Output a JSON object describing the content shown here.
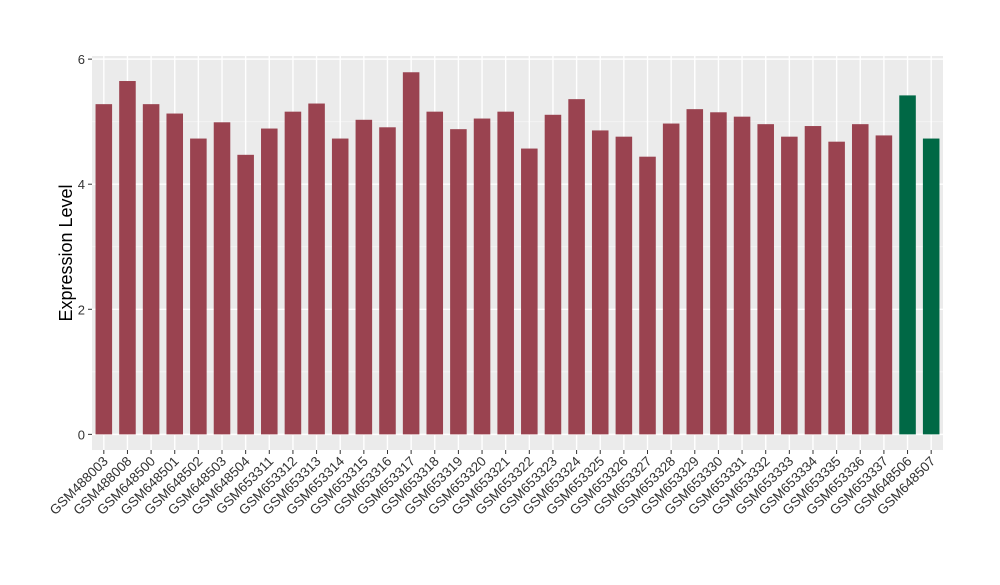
{
  "chart_data": {
    "type": "bar",
    "title": "",
    "xlabel": "",
    "ylabel": "Expression Level",
    "ylim": [
      -0.25,
      6.05
    ],
    "yticks": [
      0,
      2,
      4,
      6
    ],
    "grid": true,
    "background": "#EBEBEB",
    "categories": [
      "GSM488003",
      "GSM488008",
      "GSM648500",
      "GSM648501",
      "GSM648502",
      "GSM648503",
      "GSM648504",
      "GSM653311",
      "GSM653312",
      "GSM653313",
      "GSM653314",
      "GSM653315",
      "GSM653316",
      "GSM653317",
      "GSM653318",
      "GSM653319",
      "GSM653320",
      "GSM653321",
      "GSM653322",
      "GSM653323",
      "GSM653324",
      "GSM653325",
      "GSM653326",
      "GSM653327",
      "GSM653328",
      "GSM653329",
      "GSM653330",
      "GSM653331",
      "GSM653332",
      "GSM653333",
      "GSM653334",
      "GSM653335",
      "GSM653336",
      "GSM653337",
      "GSM648506",
      "GSM648507"
    ],
    "values": [
      5.28,
      5.65,
      5.28,
      5.13,
      4.73,
      4.99,
      4.47,
      4.89,
      5.16,
      5.29,
      4.73,
      5.03,
      4.91,
      5.79,
      5.16,
      4.88,
      5.05,
      5.16,
      4.57,
      5.11,
      5.36,
      4.86,
      4.76,
      4.44,
      4.97,
      5.2,
      5.15,
      5.08,
      4.96,
      4.76,
      4.93,
      4.68,
      4.96,
      4.78,
      5.42,
      4.73
    ],
    "groups": [
      "a",
      "a",
      "a",
      "a",
      "a",
      "a",
      "a",
      "a",
      "a",
      "a",
      "a",
      "a",
      "a",
      "a",
      "a",
      "a",
      "a",
      "a",
      "a",
      "a",
      "a",
      "a",
      "a",
      "a",
      "a",
      "a",
      "a",
      "a",
      "a",
      "a",
      "a",
      "a",
      "a",
      "a",
      "b",
      "b"
    ],
    "colors": {
      "a": "#9A4350",
      "b": "#006845"
    }
  }
}
